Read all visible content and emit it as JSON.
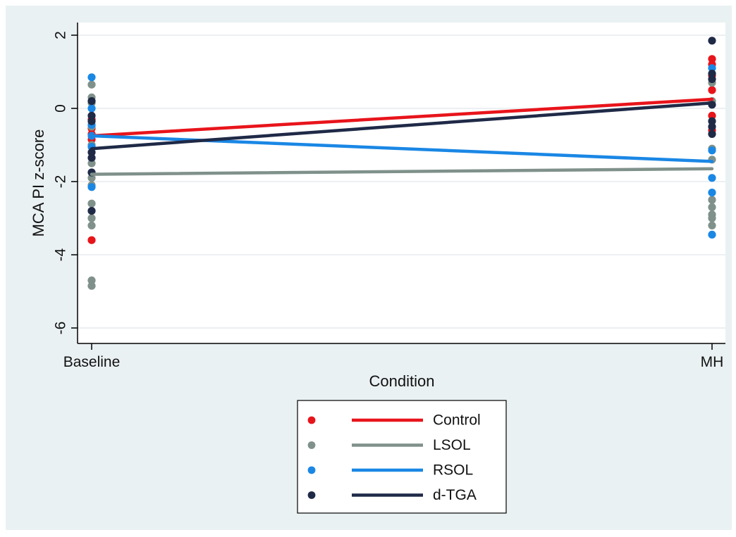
{
  "chart_data": {
    "type": "line",
    "xlabel": "Condition",
    "ylabel": "MCA PI z-score",
    "categories": [
      "Baseline",
      "MH"
    ],
    "ylim": [
      -6.5,
      2.3
    ],
    "yticks": [
      2,
      0,
      -2,
      -4,
      -6
    ],
    "ytick_labels": [
      "2",
      "0",
      "-2",
      "-4",
      "-6"
    ],
    "grid": "horizontal",
    "legend_position": "bottom-center",
    "series": [
      {
        "name": "Control",
        "color": "#e8141b",
        "fit": [
          -0.75,
          0.25
        ],
        "points": {
          "Baseline": [
            -0.7,
            -0.85,
            -0.55,
            -0.3,
            -3.6
          ],
          "MH": [
            1.35,
            1.2,
            0.5,
            -0.2,
            -0.6,
            0.9
          ]
        }
      },
      {
        "name": "LSOL",
        "color": "#7f918a",
        "fit": [
          -1.8,
          -1.65
        ],
        "points": {
          "Baseline": [
            0.65,
            0.3,
            0.15,
            -0.5,
            -1.0,
            -1.5,
            -1.9,
            -2.1,
            -2.6,
            -3.0,
            -3.2,
            -4.7,
            -4.85
          ],
          "MH": [
            0.7,
            0.2,
            -1.1,
            -1.4,
            -2.5,
            -2.7,
            -2.9,
            -3.0,
            -3.2
          ]
        }
      },
      {
        "name": "RSOL",
        "color": "#1a87e5",
        "fit": [
          -0.75,
          -1.45
        ],
        "points": {
          "Baseline": [
            0.85,
            0.0,
            -0.45,
            -0.75,
            -1.05,
            -2.15
          ],
          "MH": [
            1.1,
            -1.15,
            -1.9,
            -2.3,
            -3.45
          ]
        }
      },
      {
        "name": "d-TGA",
        "color": "#1f2a47",
        "fit": [
          -1.1,
          0.15
        ],
        "points": {
          "Baseline": [
            0.2,
            -0.2,
            -0.35,
            -1.2,
            -1.35,
            -1.75,
            -2.8
          ],
          "MH": [
            1.85,
            0.95,
            0.8,
            0.1,
            -0.35,
            -0.5,
            -0.7
          ]
        }
      }
    ]
  }
}
